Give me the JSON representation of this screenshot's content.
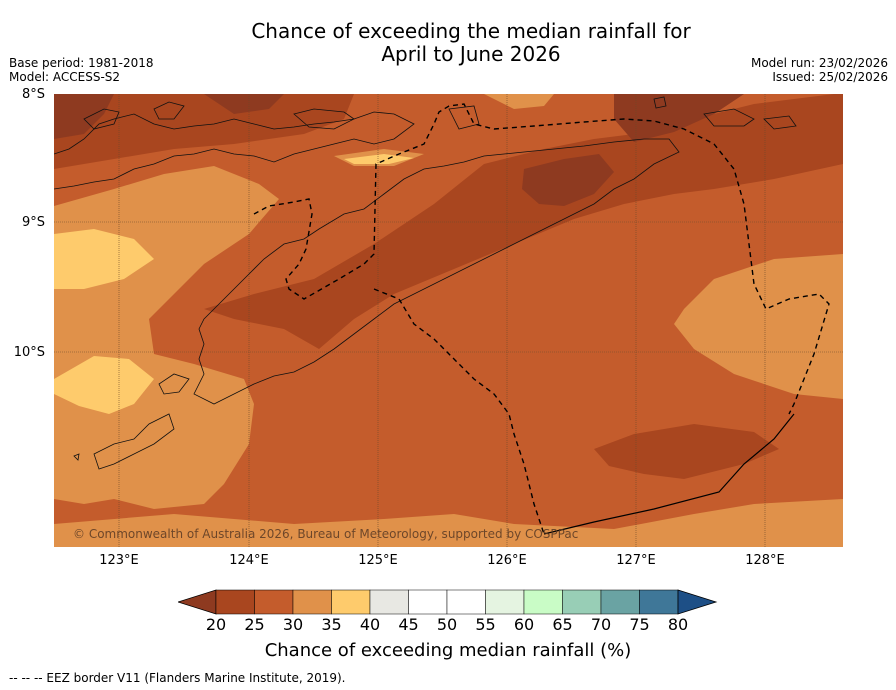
{
  "header": {
    "title_line1": "Chance of exceeding the median rainfall for",
    "title_line2": "April to June 2026",
    "base_period": "Base period: 1981-2018",
    "model": "Model: ACCESS-S2",
    "model_run": "Model run: 23/02/2026",
    "issued": "Issued: 25/02/2026"
  },
  "map": {
    "lat_labels": [
      "8°S",
      "9°S",
      "10°S"
    ],
    "lon_labels": [
      "123°E",
      "124°E",
      "125°E",
      "126°E",
      "127°E",
      "128°E"
    ],
    "copyright": "© Commonwealth of Australia 2026, Bureau of Meteorology, supported by COSPPac",
    "regions": [
      {
        "name": "Timor and Lesser Sunda islands",
        "category": "land outline"
      },
      {
        "name": "Exclusive economic zone",
        "category": "maritime border"
      }
    ]
  },
  "colorbar": {
    "ticks": [
      "20",
      "25",
      "30",
      "35",
      "40",
      "45",
      "50",
      "55",
      "60",
      "65",
      "70",
      "75",
      "80"
    ],
    "colors": [
      "#8e3a20",
      "#a9461f",
      "#c45c2c",
      "#e0914a",
      "#fecb6c",
      "#e8e8e3",
      "#ffffff",
      "#ffffff",
      "#e5f4e1",
      "#c9fcc6",
      "#98ceb6",
      "#6aa3a3",
      "#3f7798",
      "#1d4f86"
    ],
    "label": "Chance of exceeding median rainfall (%)"
  },
  "footnote": "--  --  -- EEZ border V11 (Flanders Marine Institute, 2019)."
}
